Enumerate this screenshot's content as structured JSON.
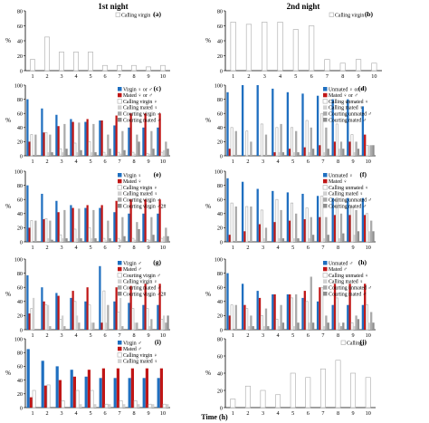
{
  "figure": {
    "col_titles": [
      "1st night",
      "2nd night"
    ],
    "xlabel": "Time (h)",
    "ylabel": "%"
  },
  "colors": {
    "blue": "#1f6fc0",
    "red": "#c01616",
    "white_bar": "#ffffff",
    "light_grey": "#d2d2d2",
    "grey": "#aaaaaa",
    "dark_grey": "#8f8f8f",
    "outline": "#a9a9a9"
  },
  "chart_data": [
    {
      "type": "bar",
      "panel": "(a)",
      "categories": [
        "1",
        "2",
        "3",
        "4",
        "5",
        "6",
        "7",
        "8",
        "9",
        "10"
      ],
      "ylim": [
        0,
        80
      ],
      "yticks": [
        0,
        20,
        40,
        60,
        80
      ],
      "legend": [
        "Calling virgin ♀"
      ],
      "series": [
        {
          "name": "Calling virgin ♀",
          "color": "white_bar",
          "values": [
            15,
            45,
            25,
            25,
            25,
            7,
            7,
            7,
            5,
            7
          ]
        }
      ]
    },
    {
      "type": "bar",
      "panel": "(b)",
      "categories": [
        "1",
        "2",
        "3",
        "4",
        "5",
        "6",
        "7",
        "8",
        "9",
        "10"
      ],
      "ylim": [
        0,
        80
      ],
      "yticks": [
        0,
        20,
        40,
        60,
        80
      ],
      "legend": [
        "Calling virgin ♀"
      ],
      "series": [
        {
          "name": "Calling virgin ♀",
          "color": "white_bar",
          "values": [
            65,
            62,
            65,
            65,
            55,
            60,
            15,
            10,
            15,
            10
          ]
        }
      ]
    },
    {
      "type": "bar",
      "panel": "(c)",
      "categories": [
        "1",
        "2",
        "3",
        "4",
        "5",
        "6",
        "7",
        "8",
        "9",
        "10"
      ],
      "ylim": [
        0,
        100
      ],
      "yticks": [
        0,
        20,
        40,
        60,
        80,
        100
      ],
      "legend": [
        "Virgin ♀ or ♂",
        "Mated ♀ or ♂",
        "Calling virgin ♀",
        "Calling mated ♀",
        "Courting virgin ♂",
        "Courting mated ♂"
      ],
      "series": [
        {
          "name": "Virgin ♀ or ♂",
          "color": "blue",
          "values": [
            80,
            67,
            58,
            52,
            48,
            50,
            43,
            40,
            40,
            40
          ]
        },
        {
          "name": "Mated ♀ or ♂",
          "color": "red",
          "values": [
            20,
            33,
            42,
            48,
            52,
            50,
            57,
            60,
            60,
            60
          ]
        },
        {
          "name": "Calling virgin ♀",
          "color": "white_bar",
          "values": [
            30,
            33,
            10,
            18,
            20,
            5,
            5,
            5,
            3,
            5
          ]
        },
        {
          "name": "Calling mated ♀",
          "color": "light_grey",
          "values": [
            0,
            5,
            5,
            5,
            5,
            2,
            3,
            3,
            3,
            8
          ]
        },
        {
          "name": "Courting virgin ♂",
          "color": "grey",
          "values": [
            30,
            30,
            45,
            47,
            45,
            30,
            35,
            30,
            35,
            20
          ]
        },
        {
          "name": "Courting mated ♂",
          "color": "dark_grey",
          "values": [
            0,
            5,
            10,
            8,
            5,
            10,
            8,
            20,
            10,
            10
          ]
        }
      ]
    },
    {
      "type": "bar",
      "panel": "(d)",
      "categories": [
        "1",
        "2",
        "3",
        "4",
        "5",
        "6",
        "7",
        "8",
        "9",
        "10"
      ],
      "ylim": [
        0,
        100
      ],
      "yticks": [
        0,
        20,
        40,
        60,
        80,
        100
      ],
      "legend": [
        "Unmated ♀ or ♂",
        "Mated ♀ or ♂",
        "Calling unmated ♀",
        "Calling mated ♀",
        "Courting unmated ♂",
        "Courting mated ♂"
      ],
      "series": [
        {
          "name": "Unmated ♀ or ♂",
          "color": "blue",
          "values": [
            90,
            100,
            100,
            95,
            90,
            88,
            85,
            80,
            80,
            70
          ]
        },
        {
          "name": "Mated ♀ or ♂",
          "color": "red",
          "values": [
            10,
            0,
            0,
            5,
            10,
            12,
            15,
            20,
            20,
            30
          ]
        },
        {
          "name": "Calling unmated ♀",
          "color": "white_bar",
          "values": [
            40,
            35,
            45,
            40,
            40,
            50,
            60,
            45,
            30,
            15
          ]
        },
        {
          "name": "Calling mated ♀",
          "color": "light_grey",
          "values": [
            0,
            0,
            0,
            5,
            5,
            5,
            5,
            10,
            5,
            15
          ]
        },
        {
          "name": "Courting unmated ♂",
          "color": "grey",
          "values": [
            35,
            20,
            30,
            45,
            35,
            40,
            40,
            20,
            20,
            15
          ]
        },
        {
          "name": "Courting mated ♂",
          "color": "dark_grey",
          "values": [
            0,
            0,
            0,
            5,
            5,
            10,
            10,
            10,
            10,
            15
          ]
        }
      ]
    },
    {
      "type": "bar",
      "panel": "(e)",
      "categories": [
        "1",
        "2",
        "3",
        "4",
        "5",
        "6",
        "7",
        "8",
        "9",
        "10"
      ],
      "ylim": [
        0,
        100
      ],
      "yticks": [
        0,
        20,
        40,
        60,
        80,
        100
      ],
      "legend": [
        "Virgin ♀",
        "Mated ♀",
        "Calling virgin ♀",
        "Calling mated ♀",
        "Courting virgin ♂",
        "Courting virgin ♂2#"
      ],
      "series": [
        {
          "name": "Virgin ♀",
          "color": "blue",
          "values": [
            80,
            68,
            58,
            52,
            48,
            48,
            42,
            40,
            40,
            40
          ]
        },
        {
          "name": "Mated ♀",
          "color": "red",
          "values": [
            20,
            32,
            42,
            48,
            52,
            52,
            58,
            60,
            60,
            60
          ]
        },
        {
          "name": "Calling virgin ♀",
          "color": "white_bar",
          "values": [
            30,
            33,
            10,
            18,
            20,
            5,
            5,
            5,
            3,
            5
          ]
        },
        {
          "name": "Calling mated ♀",
          "color": "light_grey",
          "values": [
            0,
            5,
            5,
            5,
            5,
            2,
            3,
            3,
            3,
            8
          ]
        },
        {
          "name": "Courting virgin ♂",
          "color": "grey",
          "values": [
            30,
            30,
            45,
            47,
            45,
            30,
            35,
            28,
            35,
            20
          ]
        },
        {
          "name": "Courting virgin ♂2#",
          "color": "dark_grey",
          "values": [
            0,
            3,
            5,
            5,
            5,
            5,
            8,
            18,
            10,
            8
          ]
        }
      ]
    },
    {
      "type": "bar",
      "panel": "(f)",
      "categories": [
        "1",
        "2",
        "3",
        "4",
        "5",
        "6",
        "7",
        "8",
        "9",
        "10"
      ],
      "ylim": [
        0,
        100
      ],
      "yticks": [
        0,
        20,
        40,
        60,
        80,
        100
      ],
      "legend": [
        "Unmated ♀",
        "Mated ♀",
        "Calling unmated ♀",
        "Calling mated ♀",
        "Courting unmated ♂",
        "Courting mated ♂"
      ],
      "series": [
        {
          "name": "Unmated ♀",
          "color": "blue",
          "values": [
            90,
            85,
            75,
            72,
            70,
            68,
            65,
            62,
            62,
            62
          ]
        },
        {
          "name": "Mated ♀",
          "color": "red",
          "values": [
            10,
            15,
            25,
            28,
            30,
            32,
            35,
            38,
            38,
            38
          ]
        },
        {
          "name": "Calling unmated ♀",
          "color": "white_bar",
          "values": [
            55,
            50,
            45,
            60,
            55,
            48,
            65,
            62,
            50,
            40
          ]
        },
        {
          "name": "Calling mated ♀",
          "color": "light_grey",
          "values": [
            0,
            0,
            5,
            5,
            5,
            5,
            5,
            5,
            10,
            15
          ]
        },
        {
          "name": "Courting unmated ♂",
          "color": "grey",
          "values": [
            50,
            50,
            20,
            45,
            40,
            35,
            35,
            40,
            45,
            30
          ]
        },
        {
          "name": "Courting mated ♂",
          "color": "dark_grey",
          "values": [
            0,
            0,
            0,
            5,
            5,
            10,
            10,
            12,
            15,
            15
          ]
        }
      ]
    },
    {
      "type": "bar",
      "panel": "(g)",
      "categories": [
        "1",
        "2",
        "3",
        "4",
        "5",
        "6",
        "7",
        "8",
        "9",
        "10"
      ],
      "ylim": [
        0,
        100
      ],
      "yticks": [
        0,
        20,
        40,
        60,
        80,
        100
      ],
      "legend": [
        "Virgin ♂",
        "Mated ♂",
        "Courting virgin ♂",
        "Calling virgin ♀",
        "Courting mated ♂",
        "Courting virgin ♂2#"
      ],
      "series": [
        {
          "name": "Virgin ♂",
          "color": "blue",
          "values": [
            77,
            60,
            52,
            45,
            40,
            90,
            40,
            38,
            35,
            35
          ]
        },
        {
          "name": "Mated ♂",
          "color": "red",
          "values": [
            23,
            40,
            48,
            55,
            60,
            10,
            60,
            62,
            65,
            65
          ]
        },
        {
          "name": "Courting virgin ♂",
          "color": "white_bar",
          "values": [
            30,
            35,
            15,
            40,
            35,
            55,
            25,
            30,
            30,
            15
          ]
        },
        {
          "name": "Calling virgin ♀",
          "color": "light_grey",
          "values": [
            45,
            35,
            20,
            20,
            10,
            10,
            45,
            10,
            5,
            20
          ]
        },
        {
          "name": "Courting mated ♂",
          "color": "grey",
          "values": [
            0,
            5,
            5,
            10,
            10,
            35,
            5,
            10,
            15,
            10
          ]
        },
        {
          "name": "Courting virgin ♂2#",
          "color": "dark_grey",
          "values": [
            0,
            0,
            0,
            0,
            0,
            0,
            0,
            0,
            0,
            20
          ]
        }
      ]
    },
    {
      "type": "bar",
      "panel": "(h)",
      "categories": [
        "1",
        "2",
        "3",
        "4",
        "5",
        "6",
        "7",
        "8",
        "9",
        "10"
      ],
      "ylim": [
        0,
        100
      ],
      "yticks": [
        0,
        20,
        40,
        60,
        80,
        100
      ],
      "legend": [
        "Unmated ♂",
        "Mated ♂",
        "Calling unmated ♀",
        "Calling mated ♀",
        "Courting unmated ♂",
        "Courting mated ♂"
      ],
      "series": [
        {
          "name": "Unmated ♂",
          "color": "blue",
          "values": [
            80,
            65,
            55,
            50,
            50,
            45,
            40,
            35,
            35,
            35
          ]
        },
        {
          "name": "Mated ♂",
          "color": "red",
          "values": [
            20,
            35,
            45,
            50,
            50,
            55,
            60,
            65,
            65,
            65
          ]
        },
        {
          "name": "Calling unmated ♀",
          "color": "white_bar",
          "values": [
            35,
            30,
            20,
            15,
            45,
            40,
            60,
            45,
            10,
            35
          ]
        },
        {
          "name": "Calling mated ♀",
          "color": "light_grey",
          "values": [
            0,
            5,
            5,
            5,
            5,
            10,
            5,
            10,
            5,
            10
          ]
        },
        {
          "name": "Courting unmated ♂",
          "color": "grey",
          "values": [
            35,
            20,
            30,
            35,
            50,
            75,
            20,
            5,
            20,
            25
          ]
        },
        {
          "name": "Courting mated ♂",
          "color": "dark_grey",
          "values": [
            0,
            5,
            5,
            10,
            10,
            10,
            10,
            10,
            15,
            10
          ]
        }
      ]
    },
    {
      "type": "bar",
      "panel": "(i)",
      "categories": [
        "1",
        "2",
        "3",
        "4",
        "5",
        "6",
        "7",
        "8",
        "9",
        "10"
      ],
      "ylim": [
        0,
        100
      ],
      "yticks": [
        0,
        20,
        40,
        60,
        80,
        100
      ],
      "legend": [
        "Virgin ♂",
        "Mated ♂",
        "Calling virgin ♀",
        "Calling mated ♀"
      ],
      "series": [
        {
          "name": "Virgin ♂",
          "color": "blue",
          "values": [
            85,
            68,
            60,
            55,
            45,
            43,
            43,
            43,
            43,
            43
          ]
        },
        {
          "name": "Mated ♂",
          "color": "red",
          "values": [
            15,
            32,
            40,
            45,
            55,
            57,
            57,
            57,
            57,
            57
          ]
        },
        {
          "name": "Calling virgin ♀",
          "color": "white_bar",
          "values": [
            25,
            33,
            10,
            25,
            25,
            5,
            10,
            10,
            5,
            5
          ]
        },
        {
          "name": "Calling mated ♀",
          "color": "light_grey",
          "values": [
            0,
            0,
            0,
            5,
            5,
            5,
            5,
            5,
            5,
            5
          ]
        }
      ]
    },
    {
      "type": "bar",
      "panel": "(j)",
      "categories": [
        "1",
        "2",
        "3",
        "4",
        "5",
        "6",
        "7",
        "8",
        "9",
        "10"
      ],
      "ylim": [
        0,
        80
      ],
      "yticks": [
        0,
        20,
        40,
        60,
        80
      ],
      "legend": [
        "Calling ♀"
      ],
      "series": [
        {
          "name": "Calling ♀",
          "color": "white_bar",
          "values": [
            10,
            25,
            20,
            15,
            40,
            35,
            45,
            55,
            40,
            35
          ]
        }
      ]
    }
  ]
}
